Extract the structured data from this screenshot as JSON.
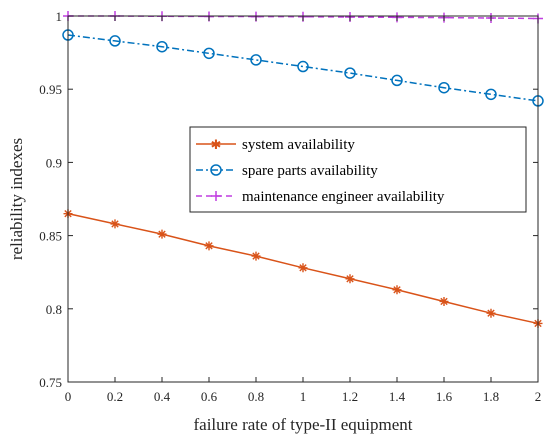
{
  "chart_data": {
    "type": "line",
    "title": "",
    "xlabel": "failure rate of type-II equipment",
    "ylabel": "reliability indexes",
    "xlim": [
      0,
      2
    ],
    "ylim": [
      0.75,
      1
    ],
    "x_ticks": [
      "0",
      "0.2",
      "0.4",
      "0.6",
      "0.8",
      "1",
      "1.2",
      "1.4",
      "1.6",
      "1.8",
      "2"
    ],
    "y_ticks": [
      "0.75",
      "0.8",
      "0.85",
      "0.9",
      "0.95",
      "1"
    ],
    "grid": false,
    "legend_position": "center-right",
    "x": [
      0,
      0.2,
      0.4,
      0.6,
      0.8,
      1.0,
      1.2,
      1.4,
      1.6,
      1.8,
      2.0
    ],
    "series": [
      {
        "name": "system availability",
        "color": "#D95319",
        "marker": "asterisk",
        "line_style": "solid",
        "values": [
          0.865,
          0.858,
          0.851,
          0.843,
          0.836,
          0.828,
          0.8205,
          0.813,
          0.805,
          0.797,
          0.79
        ]
      },
      {
        "name": "spare parts availability",
        "color": "#0072BD",
        "marker": "circle",
        "line_style": "dashdot",
        "values": [
          0.987,
          0.983,
          0.979,
          0.9745,
          0.97,
          0.9655,
          0.961,
          0.956,
          0.951,
          0.9465,
          0.942
        ]
      },
      {
        "name": "maintenance engineer availability",
        "color": "#C03FE0",
        "marker": "plus",
        "line_style": "dashed",
        "values": [
          1.0,
          1.0,
          0.9998,
          0.9997,
          0.9996,
          0.9995,
          0.9993,
          0.9991,
          0.9989,
          0.9986,
          0.9983
        ]
      }
    ]
  }
}
